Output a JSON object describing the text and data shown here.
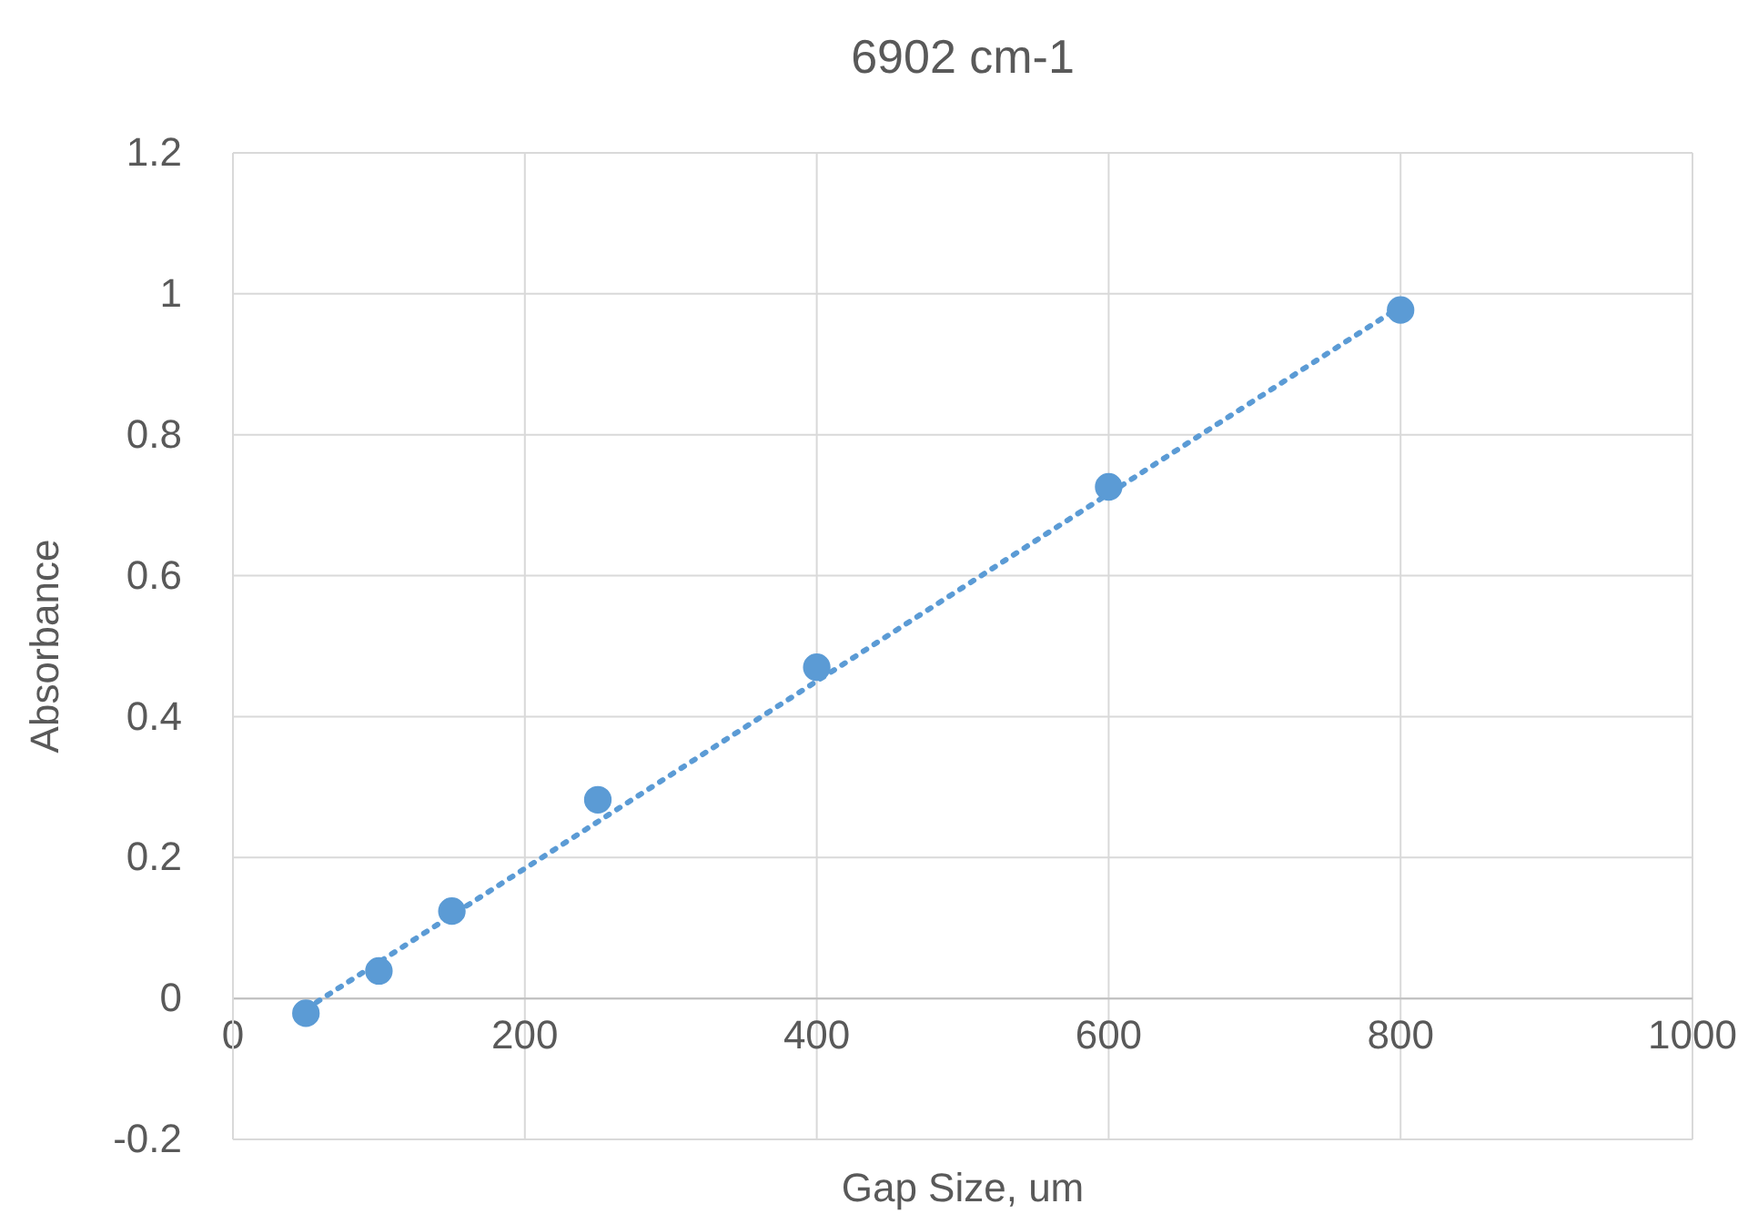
{
  "chart_data": {
    "type": "scatter",
    "title": "6902 cm-1",
    "xlabel": "Gap Size, um",
    "ylabel": "Absorbance",
    "xlim": [
      0,
      1000
    ],
    "xticks": [
      0,
      200,
      400,
      600,
      800,
      1000
    ],
    "ylim": [
      -0.2,
      1.2
    ],
    "yticks": [
      -0.2,
      0,
      0.2,
      0.4,
      0.6,
      0.8,
      1,
      1.2
    ],
    "grid": true,
    "series": [
      {
        "color": "#5b9bd5",
        "marker": "circle",
        "x": [
          50,
          100,
          150,
          250,
          400,
          600,
          800
        ],
        "values": [
          -0.021,
          0.039,
          0.124,
          0.282,
          0.47,
          0.726,
          0.977
        ]
      },
      {
        "type": "line",
        "color": "#5b9bd5",
        "line_style": "dotted",
        "x": [
          50,
          800
        ],
        "values": [
          -0.015,
          0.982
        ]
      }
    ]
  }
}
